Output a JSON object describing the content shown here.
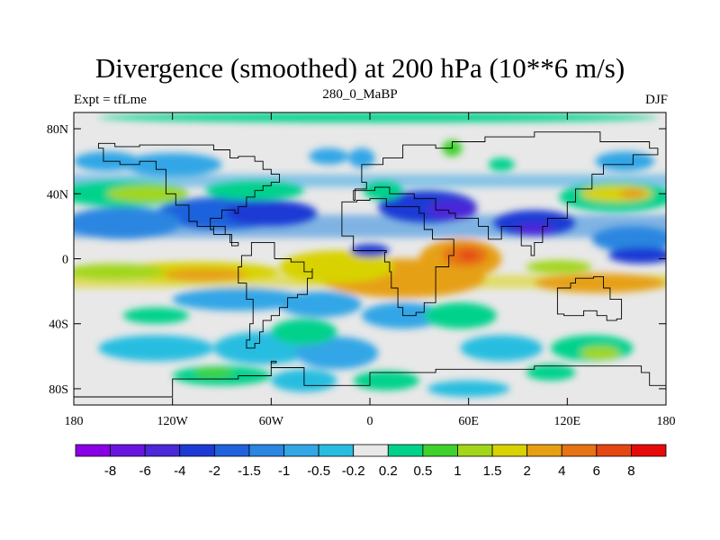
{
  "title": "Divergence (smoothed) at 200 hPa (10**6 m/s)",
  "subtitle_left": "Expt = tfLme",
  "subtitle_center": "280_0_MaBP",
  "subtitle_right": "DJF",
  "map": {
    "projection": "cylindrical-equidistant",
    "lon_range": [
      -180,
      180
    ],
    "lat_range": [
      -90,
      90
    ],
    "background_color": "#e8e8e8",
    "coastline_color": "#000000",
    "x_ticks": [
      {
        "value": -180,
        "label": "180"
      },
      {
        "value": -120,
        "label": "120W"
      },
      {
        "value": -60,
        "label": "60W"
      },
      {
        "value": 0,
        "label": "0"
      },
      {
        "value": 60,
        "label": "60E"
      },
      {
        "value": 120,
        "label": "120E"
      },
      {
        "value": 180,
        "label": "180"
      }
    ],
    "y_ticks": [
      {
        "value": 80,
        "label": "80N"
      },
      {
        "value": 40,
        "label": "40N"
      },
      {
        "value": 0,
        "label": "0"
      },
      {
        "value": -40,
        "label": "40S"
      },
      {
        "value": -80,
        "label": "80S"
      }
    ]
  },
  "colorbar": {
    "colors": [
      "#8a00e6",
      "#6a14e0",
      "#4b28d8",
      "#1e3ad4",
      "#1f62dc",
      "#2a86e0",
      "#33a6e6",
      "#28bde0",
      "#e8e8e8",
      "#00d28c",
      "#3fd22c",
      "#a2d61a",
      "#d8d200",
      "#e6a012",
      "#e67314",
      "#e64614",
      "#e60a0a"
    ],
    "labels": [
      "-8",
      "-6",
      "-4",
      "-2",
      "-1.5",
      "-1",
      "-0.5",
      "-0.2",
      "0.2",
      "0.5",
      "1",
      "1.5",
      "2",
      "4",
      "6",
      "8"
    ]
  },
  "field_blobs": [
    {
      "lon": 5,
      "lat": 87,
      "rx": 170,
      "ry": 3,
      "level": 9
    },
    {
      "lon": -150,
      "lat": 40,
      "rx": 40,
      "ry": 8,
      "level": 9
    },
    {
      "lon": -135,
      "lat": 40,
      "rx": 25,
      "ry": 5,
      "level": 11
    },
    {
      "lon": -70,
      "lat": 42,
      "rx": 30,
      "ry": 6,
      "level": 9
    },
    {
      "lon": 8,
      "lat": 42,
      "rx": 12,
      "ry": 6,
      "level": 9
    },
    {
      "lon": 150,
      "lat": 38,
      "rx": 35,
      "ry": 9,
      "level": 9
    },
    {
      "lon": 150,
      "lat": 40,
      "rx": 22,
      "ry": 5,
      "level": 12
    },
    {
      "lon": 160,
      "lat": 40,
      "rx": 8,
      "ry": 3,
      "level": 13
    },
    {
      "lon": 50,
      "lat": 68,
      "rx": 6,
      "ry": 5,
      "level": 10
    },
    {
      "lon": 80,
      "lat": 58,
      "rx": 8,
      "ry": 4,
      "level": 9
    },
    {
      "lon": -160,
      "lat": 60,
      "rx": 20,
      "ry": 6,
      "level": 6
    },
    {
      "lon": -120,
      "lat": 58,
      "rx": 30,
      "ry": 7,
      "level": 6
    },
    {
      "lon": -25,
      "lat": 63,
      "rx": 12,
      "ry": 5,
      "level": 6
    },
    {
      "lon": -5,
      "lat": 62,
      "rx": 8,
      "ry": 6,
      "level": 6
    },
    {
      "lon": 155,
      "lat": 60,
      "rx": 18,
      "ry": 6,
      "level": 6
    },
    {
      "lon": -150,
      "lat": 22,
      "rx": 35,
      "ry": 10,
      "level": 5
    },
    {
      "lon": -90,
      "lat": 28,
      "rx": 40,
      "ry": 10,
      "level": 4
    },
    {
      "lon": -60,
      "lat": 28,
      "rx": 28,
      "ry": 8,
      "level": 3
    },
    {
      "lon": 35,
      "lat": 32,
      "rx": 30,
      "ry": 10,
      "level": 3
    },
    {
      "lon": 50,
      "lat": 30,
      "rx": 15,
      "ry": 6,
      "level": 2
    },
    {
      "lon": 100,
      "lat": 22,
      "rx": 25,
      "ry": 8,
      "level": 3
    },
    {
      "lon": 100,
      "lat": 18,
      "rx": 12,
      "ry": 4,
      "level": 2
    },
    {
      "lon": 160,
      "lat": 12,
      "rx": 25,
      "ry": 8,
      "level": 5
    },
    {
      "lon": 165,
      "lat": 2,
      "rx": 20,
      "ry": 5,
      "level": 3
    },
    {
      "lon": 0,
      "lat": 5,
      "rx": 12,
      "ry": 4,
      "level": 3
    },
    {
      "lon": -155,
      "lat": -8,
      "rx": 30,
      "ry": 5,
      "level": 11
    },
    {
      "lon": -105,
      "lat": -8,
      "rx": 50,
      "ry": 6,
      "level": 12
    },
    {
      "lon": -100,
      "lat": -10,
      "rx": 25,
      "ry": 4,
      "level": 13
    },
    {
      "lon": -20,
      "lat": -5,
      "rx": 35,
      "ry": 10,
      "level": 12
    },
    {
      "lon": 20,
      "lat": -12,
      "rx": 50,
      "ry": 12,
      "level": 13
    },
    {
      "lon": 55,
      "lat": 0,
      "rx": 25,
      "ry": 12,
      "level": 13
    },
    {
      "lon": 58,
      "lat": 2,
      "rx": 14,
      "ry": 7,
      "level": 14
    },
    {
      "lon": 60,
      "lat": 2,
      "rx": 6,
      "ry": 3,
      "level": 15
    },
    {
      "lon": 140,
      "lat": -15,
      "rx": 40,
      "ry": 6,
      "level": 13
    },
    {
      "lon": 115,
      "lat": -5,
      "rx": 20,
      "ry": 4,
      "level": 11
    },
    {
      "lon": -80,
      "lat": -25,
      "rx": 40,
      "ry": 7,
      "level": 6
    },
    {
      "lon": -30,
      "lat": -28,
      "rx": 25,
      "ry": 8,
      "level": 6
    },
    {
      "lon": 20,
      "lat": -35,
      "rx": 25,
      "ry": 8,
      "level": 6
    },
    {
      "lon": -130,
      "lat": -35,
      "rx": 20,
      "ry": 5,
      "level": 9
    },
    {
      "lon": 55,
      "lat": -35,
      "rx": 22,
      "ry": 8,
      "level": 9
    },
    {
      "lon": -40,
      "lat": -45,
      "rx": 20,
      "ry": 8,
      "level": 9
    },
    {
      "lon": 135,
      "lat": -55,
      "rx": 25,
      "ry": 8,
      "level": 9
    },
    {
      "lon": 140,
      "lat": -58,
      "rx": 12,
      "ry": 4,
      "level": 11
    },
    {
      "lon": -130,
      "lat": -55,
      "rx": 35,
      "ry": 8,
      "level": 7
    },
    {
      "lon": -65,
      "lat": -55,
      "rx": 30,
      "ry": 10,
      "level": 7
    },
    {
      "lon": -20,
      "lat": -58,
      "rx": 25,
      "ry": 10,
      "level": 6
    },
    {
      "lon": 80,
      "lat": -55,
      "rx": 25,
      "ry": 8,
      "level": 7
    },
    {
      "lon": 110,
      "lat": -70,
      "rx": 15,
      "ry": 5,
      "level": 9
    },
    {
      "lon": -90,
      "lat": -72,
      "rx": 30,
      "ry": 6,
      "level": 9
    },
    {
      "lon": -95,
      "lat": -70,
      "rx": 12,
      "ry": 3,
      "level": 10
    },
    {
      "lon": -40,
      "lat": -75,
      "rx": 20,
      "ry": 7,
      "level": 7
    },
    {
      "lon": 60,
      "lat": -80,
      "rx": 25,
      "ry": 5,
      "level": 7
    },
    {
      "lon": 10,
      "lat": -75,
      "rx": 20,
      "ry": 6,
      "level": 9
    }
  ],
  "coastline_path": [
    [
      -58,
      0
    ],
    [
      -48,
      -2
    ],
    [
      -40,
      -8
    ],
    [
      -35,
      -6
    ],
    [
      -35,
      -12
    ],
    [
      -38,
      -22
    ],
    [
      -44,
      -24
    ],
    [
      -50,
      -30
    ],
    [
      -55,
      -35
    ],
    [
      -60,
      -38
    ],
    [
      -65,
      -45
    ],
    [
      -67,
      -52
    ],
    [
      -70,
      -55
    ],
    [
      -75,
      -50
    ],
    [
      -73,
      -40
    ],
    [
      -71,
      -25
    ],
    [
      -75,
      -15
    ],
    [
      -80,
      -5
    ],
    [
      -78,
      2
    ],
    [
      -72,
      10
    ],
    [
      -60,
      10
    ],
    [
      -58,
      0
    ]
  ],
  "coastline_africa": [
    [
      -17,
      20
    ],
    [
      -17,
      14
    ],
    [
      -10,
      5
    ],
    [
      0,
      5
    ],
    [
      10,
      4
    ],
    [
      9,
      -2
    ],
    [
      12,
      -8
    ],
    [
      13,
      -18
    ],
    [
      17,
      -30
    ],
    [
      20,
      -35
    ],
    [
      28,
      -33
    ],
    [
      33,
      -27
    ],
    [
      40,
      -15
    ],
    [
      40,
      -5
    ],
    [
      48,
      2
    ],
    [
      51,
      12
    ],
    [
      44,
      12
    ],
    [
      38,
      18
    ],
    [
      33,
      28
    ],
    [
      30,
      32
    ],
    [
      20,
      32
    ],
    [
      10,
      37
    ],
    [
      0,
      36
    ],
    [
      -8,
      35
    ],
    [
      -17,
      20
    ]
  ],
  "coastline_eurasia": [
    [
      -10,
      36
    ],
    [
      -9,
      43
    ],
    [
      -2,
      47
    ],
    [
      -5,
      58
    ],
    [
      8,
      62
    ],
    [
      20,
      70
    ],
    [
      40,
      68
    ],
    [
      50,
      72
    ],
    [
      70,
      75
    ],
    [
      100,
      78
    ],
    [
      140,
      72
    ],
    [
      170,
      68
    ],
    [
      175,
      64
    ],
    [
      160,
      58
    ],
    [
      142,
      52
    ],
    [
      135,
      43
    ],
    [
      125,
      35
    ],
    [
      120,
      25
    ],
    [
      108,
      20
    ],
    [
      105,
      10
    ],
    [
      100,
      2
    ],
    [
      98,
      8
    ],
    [
      92,
      20
    ],
    [
      80,
      12
    ],
    [
      72,
      20
    ],
    [
      66,
      25
    ],
    [
      56,
      25
    ],
    [
      52,
      28
    ],
    [
      48,
      30
    ],
    [
      40,
      37
    ],
    [
      30,
      37
    ],
    [
      27,
      40
    ],
    [
      20,
      40
    ],
    [
      12,
      44
    ],
    [
      8,
      44
    ],
    [
      3,
      42
    ],
    [
      -10,
      36
    ]
  ],
  "coastline_northamerica": [
    [
      -80,
      8
    ],
    [
      -84,
      15
    ],
    [
      -88,
      20
    ],
    [
      -95,
      18
    ],
    [
      -97,
      25
    ],
    [
      -90,
      30
    ],
    [
      -82,
      28
    ],
    [
      -80,
      32
    ],
    [
      -75,
      38
    ],
    [
      -70,
      42
    ],
    [
      -65,
      45
    ],
    [
      -60,
      47
    ],
    [
      -55,
      52
    ],
    [
      -60,
      55
    ],
    [
      -65,
      60
    ],
    [
      -70,
      63
    ],
    [
      -80,
      62
    ],
    [
      -85,
      67
    ],
    [
      -95,
      70
    ],
    [
      -110,
      70
    ],
    [
      -125,
      70
    ],
    [
      -140,
      69
    ],
    [
      -155,
      71
    ],
    [
      -165,
      68
    ],
    [
      -162,
      60
    ],
    [
      -152,
      58
    ],
    [
      -140,
      60
    ],
    [
      -130,
      55
    ],
    [
      -124,
      48
    ],
    [
      -124,
      40
    ],
    [
      -118,
      33
    ],
    [
      -110,
      23
    ],
    [
      -105,
      20
    ],
    [
      -95,
      15
    ],
    [
      -85,
      10
    ],
    [
      -80,
      8
    ]
  ],
  "coastline_australia": [
    [
      114,
      -22
    ],
    [
      114,
      -34
    ],
    [
      118,
      -35
    ],
    [
      130,
      -32
    ],
    [
      138,
      -35
    ],
    [
      144,
      -38
    ],
    [
      150,
      -37
    ],
    [
      153,
      -30
    ],
    [
      153,
      -25
    ],
    [
      146,
      -18
    ],
    [
      142,
      -11
    ],
    [
      136,
      -12
    ],
    [
      130,
      -12
    ],
    [
      125,
      -15
    ],
    [
      122,
      -18
    ],
    [
      114,
      -22
    ]
  ],
  "coastline_antarctica": [
    [
      -180,
      -85
    ],
    [
      -120,
      -74
    ],
    [
      -80,
      -72
    ],
    [
      -60,
      -64
    ],
    [
      -57,
      -63
    ],
    [
      -60,
      -67
    ],
    [
      -40,
      -78
    ],
    [
      0,
      -70
    ],
    [
      40,
      -68
    ],
    [
      70,
      -68
    ],
    [
      100,
      -66
    ],
    [
      140,
      -66
    ],
    [
      165,
      -70
    ],
    [
      170,
      -78
    ],
    [
      180,
      -85
    ]
  ]
}
